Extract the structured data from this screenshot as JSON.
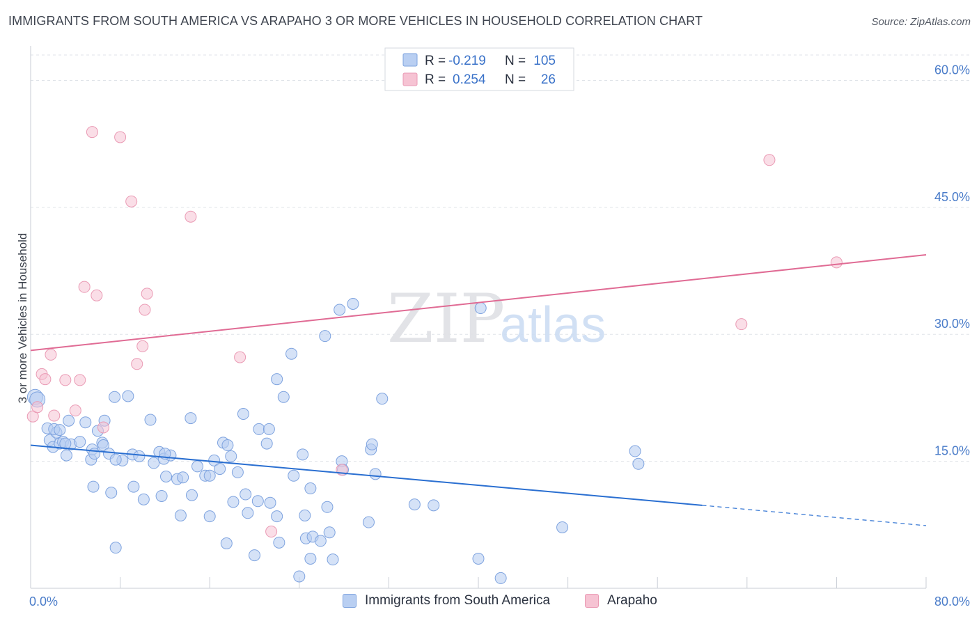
{
  "title": "IMMIGRANTS FROM SOUTH AMERICA VS ARAPAHO 3 OR MORE VEHICLES IN HOUSEHOLD CORRELATION CHART",
  "source": "Source: ZipAtlas.com",
  "watermark": {
    "zip": "ZIP",
    "atlas": "atlas"
  },
  "colors": {
    "blue_fill": "#b9cff2",
    "blue_stroke": "#7ea3df",
    "blue_line": "#2a6fd1",
    "pink_fill": "#f6c3d3",
    "pink_stroke": "#ea9ab4",
    "pink_line": "#e06b94",
    "axis_text": "#4a7cc9",
    "grid": "#dfe3e8"
  },
  "legend": {
    "rows": [
      {
        "r_label": "R =",
        "r_value": "-0.219",
        "n_label": "N =",
        "n_value": "105"
      },
      {
        "r_label": "R =",
        "r_value": "0.254",
        "n_label": "N =",
        "n_value": "26"
      }
    ]
  },
  "chart_data": {
    "type": "scatter",
    "title": "IMMIGRANTS FROM SOUTH AMERICA VS ARAPAHO 3 OR MORE VEHICLES IN HOUSEHOLD CORRELATION CHART",
    "xlabel": "",
    "ylabel": "3 or more Vehicles in Household",
    "xlim": [
      0,
      80
    ],
    "ylim": [
      0,
      63
    ],
    "x_tick_labels": [
      "0.0%",
      "80.0%"
    ],
    "y_ticks": [
      15,
      30,
      45,
      60
    ],
    "y_tick_labels": [
      "15.0%",
      "30.0%",
      "45.0%",
      "60.0%"
    ],
    "grid": true,
    "legend_position": "top-center",
    "series": [
      {
        "name": "Immigrants from South America",
        "color": "#b9cff2",
        "r": -0.219,
        "n": 105,
        "trend": {
          "x0": 0,
          "y0": 16.9,
          "x1": 60,
          "y1": 9.8,
          "dash_to_x": 80,
          "dash_to_y": 7.4
        },
        "points": [
          [
            0.4,
            22.6
          ],
          [
            0.6,
            22.3
          ],
          [
            1.5,
            18.9
          ],
          [
            1.7,
            17.5
          ],
          [
            2.0,
            16.7
          ],
          [
            2.3,
            18.4
          ],
          [
            2.6,
            17.1
          ],
          [
            2.9,
            17.3
          ],
          [
            3.2,
            15.7
          ],
          [
            3.4,
            19.8
          ],
          [
            3.6,
            17.0
          ],
          [
            2.1,
            18.8
          ],
          [
            2.6,
            18.7
          ],
          [
            3.1,
            17.1
          ],
          [
            4.4,
            17.3
          ],
          [
            4.9,
            19.6
          ],
          [
            5.4,
            15.2
          ],
          [
            6.0,
            18.6
          ],
          [
            6.4,
            17.2
          ],
          [
            6.5,
            16.9
          ],
          [
            6.6,
            19.8
          ],
          [
            7.0,
            15.9
          ],
          [
            7.5,
            22.6
          ],
          [
            8.2,
            15.1
          ],
          [
            8.7,
            22.7
          ],
          [
            9.1,
            15.8
          ],
          [
            9.7,
            15.6
          ],
          [
            10.7,
            19.9
          ],
          [
            11.0,
            14.8
          ],
          [
            11.5,
            16.1
          ],
          [
            11.9,
            15.3
          ],
          [
            12.5,
            15.7
          ],
          [
            13.1,
            12.9
          ],
          [
            13.6,
            13.1
          ],
          [
            14.3,
            20.1
          ],
          [
            14.9,
            14.4
          ],
          [
            15.6,
            13.3
          ],
          [
            16.0,
            13.3
          ],
          [
            16.4,
            15.1
          ],
          [
            16.9,
            14.1
          ],
          [
            17.2,
            17.2
          ],
          [
            17.6,
            16.9
          ],
          [
            17.9,
            15.6
          ],
          [
            18.5,
            13.7
          ],
          [
            19.0,
            20.6
          ],
          [
            20.4,
            18.8
          ],
          [
            21.1,
            17.1
          ],
          [
            21.3,
            18.8
          ],
          [
            22.0,
            24.7
          ],
          [
            22.6,
            22.6
          ],
          [
            23.3,
            27.7
          ],
          [
            23.5,
            13.3
          ],
          [
            24.3,
            15.8
          ],
          [
            5.5,
            16.4
          ],
          [
            5.7,
            15.9
          ],
          [
            7.6,
            15.2
          ],
          [
            5.6,
            12.0
          ],
          [
            9.2,
            12.0
          ],
          [
            10.1,
            10.5
          ],
          [
            11.7,
            10.9
          ],
          [
            12.1,
            13.2
          ],
          [
            13.4,
            8.6
          ],
          [
            14.4,
            11.0
          ],
          [
            16.0,
            8.5
          ],
          [
            18.1,
            10.2
          ],
          [
            19.2,
            11.1
          ],
          [
            19.4,
            8.9
          ],
          [
            20.3,
            10.3
          ],
          [
            21.4,
            10.1
          ],
          [
            22.0,
            8.5
          ],
          [
            25.0,
            11.8
          ],
          [
            26.3,
            29.8
          ],
          [
            26.5,
            9.6
          ],
          [
            27.6,
            32.9
          ],
          [
            27.8,
            15.0
          ],
          [
            28.8,
            33.6
          ],
          [
            30.2,
            7.8
          ],
          [
            30.4,
            16.4
          ],
          [
            30.5,
            17.0
          ],
          [
            31.4,
            22.4
          ],
          [
            34.3,
            9.9
          ],
          [
            36.0,
            9.8
          ],
          [
            40.2,
            33.1
          ],
          [
            7.2,
            11.3
          ],
          [
            7.6,
            4.8
          ],
          [
            12.0,
            15.9
          ],
          [
            17.5,
            5.3
          ],
          [
            20.0,
            3.9
          ],
          [
            22.2,
            5.4
          ],
          [
            24.6,
            5.9
          ],
          [
            25.2,
            6.1
          ],
          [
            25.9,
            5.6
          ],
          [
            26.7,
            6.6
          ],
          [
            24.0,
            1.4
          ],
          [
            25.0,
            3.5
          ],
          [
            27.0,
            3.4
          ],
          [
            40.0,
            3.5
          ],
          [
            42.0,
            1.2
          ],
          [
            47.5,
            7.2
          ],
          [
            54.0,
            16.2
          ],
          [
            54.3,
            14.7
          ],
          [
            27.9,
            14.0
          ],
          [
            24.5,
            8.6
          ],
          [
            30.8,
            13.5
          ]
        ]
      },
      {
        "name": "Arapaho",
        "color": "#f6c3d3",
        "r": 0.254,
        "n": 26,
        "trend": {
          "x0": 0,
          "y0": 28.1,
          "x1": 80,
          "y1": 39.4
        },
        "points": [
          [
            0.2,
            20.3
          ],
          [
            0.6,
            21.4
          ],
          [
            1.0,
            25.3
          ],
          [
            1.3,
            24.7
          ],
          [
            1.8,
            27.6
          ],
          [
            2.1,
            20.4
          ],
          [
            3.1,
            24.6
          ],
          [
            4.0,
            21.0
          ],
          [
            4.4,
            24.6
          ],
          [
            4.8,
            35.6
          ],
          [
            5.5,
            53.9
          ],
          [
            5.9,
            34.6
          ],
          [
            6.5,
            19.0
          ],
          [
            8.0,
            53.3
          ],
          [
            9.0,
            45.7
          ],
          [
            9.5,
            26.5
          ],
          [
            10.0,
            28.6
          ],
          [
            10.2,
            32.9
          ],
          [
            10.4,
            34.8
          ],
          [
            14.3,
            43.9
          ],
          [
            18.7,
            27.3
          ],
          [
            21.5,
            6.7
          ],
          [
            27.8,
            14.0
          ],
          [
            63.5,
            31.2
          ],
          [
            66.0,
            50.6
          ],
          [
            72.0,
            38.5
          ]
        ]
      }
    ]
  }
}
